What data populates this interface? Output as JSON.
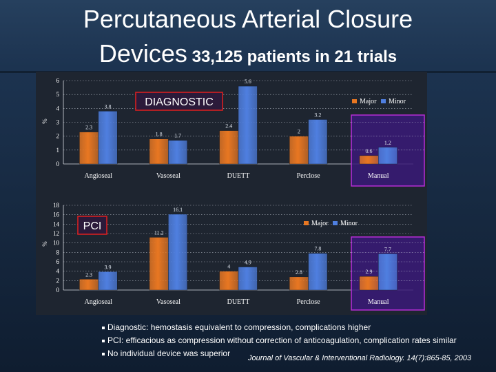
{
  "slide": {
    "title_line1": "Percutaneous Arterial Closure",
    "title_line2_main": "Devices",
    "title_line2_sub": " 33,125 patients in 21 trials"
  },
  "colors": {
    "major": "#e87722",
    "minor": "#4f7fe0",
    "highlight_box": "#b72dd6",
    "label_box": "#d42020"
  },
  "chart_data": [
    {
      "type": "bar",
      "title": "DIAGNOSTIC",
      "ylabel": "%",
      "categories": [
        "Angioseal",
        "Vasoseal",
        "DUETT",
        "Perclose",
        "Manual"
      ],
      "series": [
        {
          "name": "Major",
          "values": [
            2.3,
            1.8,
            2.4,
            2,
            0.6
          ]
        },
        {
          "name": "Minor",
          "values": [
            3.8,
            1.7,
            5.6,
            3.2,
            1.2
          ]
        }
      ],
      "value_labels": {
        "Major": [
          "2.3",
          "1.8",
          "2.4",
          "2",
          "0.6"
        ],
        "Minor": [
          "3.8",
          "1.7",
          "5.6",
          "3.2",
          "1.2"
        ]
      },
      "ylim": [
        0,
        6
      ],
      "yticks": [
        "0",
        "1",
        "2",
        "3",
        "4",
        "5",
        "6"
      ],
      "highlight_category": "Manual",
      "legend": "top-right",
      "grid": "dotted horizontal"
    },
    {
      "type": "bar",
      "title": "PCI",
      "ylabel": "%",
      "categories": [
        "Angioseal",
        "Vasoseal",
        "DUETT",
        "Perclose",
        "Manual"
      ],
      "series": [
        {
          "name": "Major",
          "values": [
            2.3,
            11.2,
            4,
            2.8,
            2.9
          ]
        },
        {
          "name": "Minor",
          "values": [
            3.9,
            16.1,
            4.9,
            7.8,
            7.7
          ]
        }
      ],
      "value_labels": {
        "Major": [
          "2.3",
          "11.2",
          "4",
          "2.8",
          "2.9"
        ],
        "Minor": [
          "3.9",
          "16.1",
          "4.9",
          "7.8",
          "7.7"
        ]
      },
      "ylim": [
        0,
        18
      ],
      "yticks": [
        "0",
        "2",
        "4",
        "6",
        "8",
        "10",
        "12",
        "14",
        "16",
        "18"
      ],
      "highlight_category": "Manual",
      "legend": "top-right",
      "grid": "dotted horizontal"
    }
  ],
  "bullets": [
    "Diagnostic: hemostasis equivalent to compression, complications higher",
    "PCI: efficacious as compression without correction of anticoagulation, complication rates similar",
    "No individual device was superior"
  ],
  "citation": "Journal of Vascular & Interventional Radiology. 14(7):865-85, 2003"
}
